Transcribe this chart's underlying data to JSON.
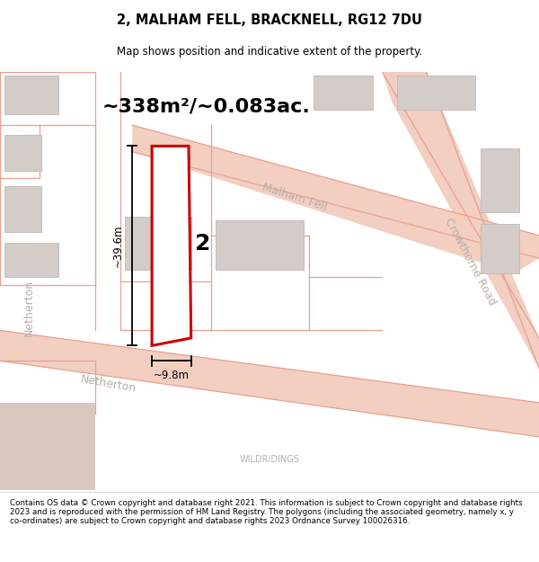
{
  "title": "2, MALHAM FELL, BRACKNELL, RG12 7DU",
  "subtitle": "Map shows position and indicative extent of the property.",
  "area_text": "~338m²/~0.083ac.",
  "dim_width": "~9.8m",
  "dim_height": "~39.6m",
  "plot_number": "2",
  "footer_text": "Contains OS data © Crown copyright and database right 2021. This information is subject to Crown copyright and database rights 2023 and is reproduced with the permission of HM Land Registry. The polygons (including the associated geometry, namely x, y co-ordinates) are subject to Crown copyright and database rights 2023 Ordnance Survey 100026316.",
  "map_bg": "#f5f0ed",
  "road_fill": "#f2cfc0",
  "road_line": "#e8a090",
  "bld_fill": "#d4ccc8",
  "bld_border": "#c0b8b4",
  "plot_fill": "#ffffff",
  "plot_border": "#cc0000",
  "dim_color": "#000000",
  "street_color": "#b8b0aa",
  "title_color": "#000000",
  "footer_color": "#000000",
  "brown_fill": "#d8c8be"
}
